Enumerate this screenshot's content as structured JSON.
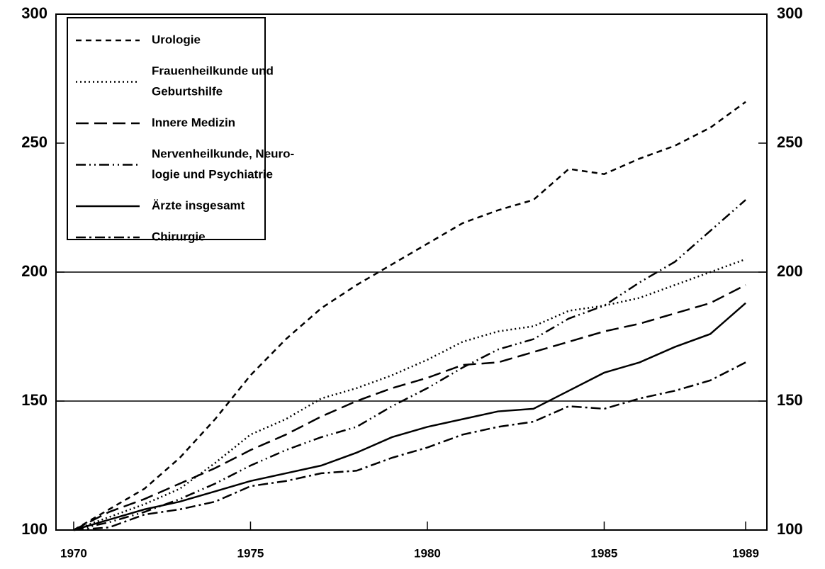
{
  "chart_data": {
    "type": "line",
    "x": [
      1970,
      1971,
      1972,
      1973,
      1974,
      1975,
      1976,
      1977,
      1978,
      1979,
      1980,
      1981,
      1982,
      1983,
      1984,
      1985,
      1986,
      1987,
      1988,
      1989
    ],
    "series": [
      {
        "name": "Urologie",
        "color": "#000000",
        "dash": "8,6",
        "values": [
          100,
          108,
          116,
          128,
          143,
          160,
          174,
          186,
          195,
          203,
          211,
          219,
          224,
          228,
          240,
          238,
          244,
          249,
          256,
          266
        ]
      },
      {
        "name": [
          "Frauenheilkunde und",
          "Geburtshilfe"
        ],
        "color": "#000000",
        "dash": "2,4",
        "values": [
          100,
          105,
          110,
          116,
          126,
          137,
          143,
          151,
          155,
          160,
          166,
          173,
          177,
          179,
          185,
          187,
          190,
          195,
          200,
          205
        ]
      },
      {
        "name": "Innere Medizin",
        "color": "#000000",
        "dash": "18,8",
        "values": [
          100,
          107,
          112,
          118,
          124,
          131,
          137,
          144,
          150,
          155,
          159,
          164,
          165,
          169,
          173,
          177,
          180,
          184,
          188,
          195
        ]
      },
      {
        "name": [
          "Nervenheilkunde, Neuro-",
          "logie und Psychiatrie"
        ],
        "color": "#000000",
        "dash": "14,5,2,5,2,5",
        "values": [
          100,
          103,
          107,
          112,
          118,
          125,
          131,
          136,
          140,
          148,
          155,
          163,
          170,
          174,
          182,
          187,
          196,
          204,
          216,
          228
        ]
      },
      {
        "name": "Ärzte insgesamt",
        "color": "#000000",
        "dash": "none",
        "values": [
          100,
          104,
          108,
          111,
          115,
          119,
          122,
          125,
          130,
          136,
          140,
          143,
          146,
          147,
          154,
          161,
          165,
          171,
          176,
          188
        ]
      },
      {
        "name": "Chirurgie",
        "color": "#000000",
        "dash": "14,5,3,5",
        "values": [
          100,
          101,
          106,
          108,
          111,
          117,
          119,
          122,
          123,
          128,
          132,
          137,
          140,
          142,
          148,
          147,
          151,
          154,
          158,
          165
        ]
      }
    ],
    "xlim": [
      1969.5,
      1989.6
    ],
    "xticks": [
      1970,
      1975,
      1980,
      1985,
      1989
    ],
    "ylim": [
      100,
      300
    ],
    "yticks": [
      100,
      150,
      200,
      250,
      300
    ],
    "grid_lines": [
      150,
      200
    ],
    "legend": "upper left",
    "right_axis": true
  }
}
